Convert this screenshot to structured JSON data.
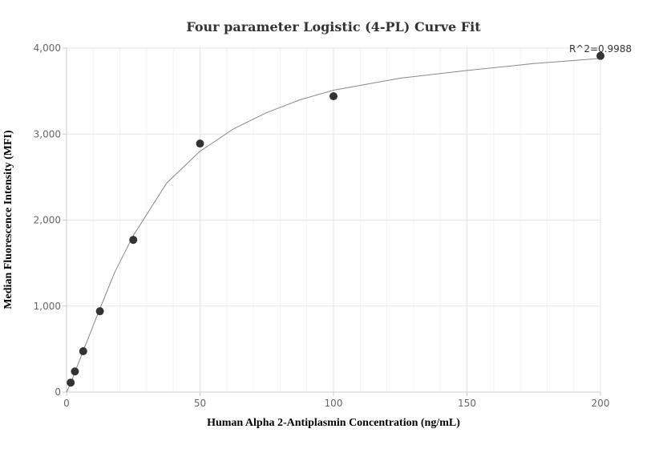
{
  "chart_data": {
    "type": "scatter",
    "title": "Four parameter Logistic (4-PL) Curve Fit",
    "xlabel": "Human Alpha 2-Antiplasmin Concentration (ng/mL)",
    "ylabel": "Median Fluorescence Intensity (MFI)",
    "xlim": [
      0,
      200
    ],
    "ylim": [
      0,
      4000
    ],
    "x_ticks": [
      0,
      50,
      100,
      150,
      200
    ],
    "x_tick_labels": [
      "0",
      "50",
      "100",
      "150",
      "200"
    ],
    "y_ticks": [
      0,
      1000,
      2000,
      3000,
      4000
    ],
    "y_tick_labels": [
      "0",
      "1,000",
      "2,000",
      "3,000",
      "4,000"
    ],
    "grid": true,
    "annotation": "R^2=0.9988",
    "series": [
      {
        "type": "scatter",
        "x": [
          1.56,
          3.13,
          6.25,
          12.5,
          25,
          50,
          100,
          200
        ],
        "y": [
          110,
          240,
          475,
          940,
          1770,
          2890,
          3440,
          3910
        ]
      },
      {
        "type": "line",
        "x": [
          0,
          1.56,
          3.13,
          6.25,
          12.5,
          18,
          25,
          37.5,
          50,
          62.5,
          75,
          87.5,
          100,
          125,
          150,
          175,
          200
        ],
        "y": [
          0,
          100,
          230,
          480,
          970,
          1390,
          1820,
          2430,
          2800,
          3060,
          3250,
          3400,
          3510,
          3650,
          3740,
          3820,
          3880
        ]
      }
    ],
    "colors": {
      "marker": "#333333",
      "curve": "#888888",
      "grid": "#e6e6e6",
      "axis": "#cccccc"
    }
  }
}
